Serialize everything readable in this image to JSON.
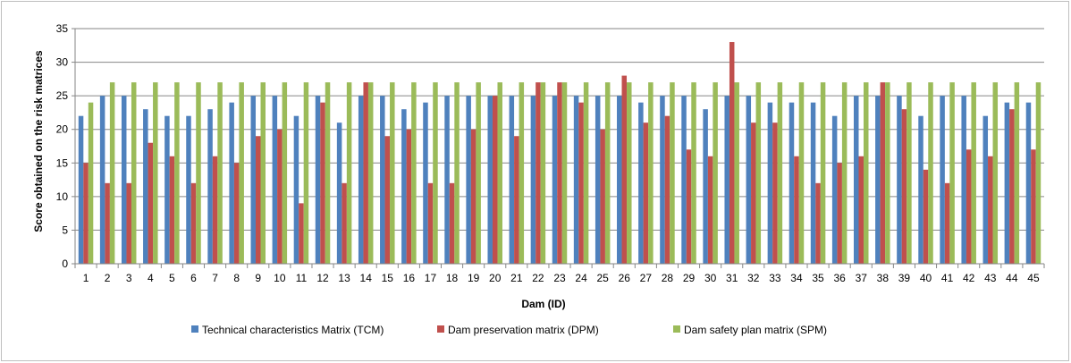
{
  "chart_data": {
    "type": "bar",
    "title": "",
    "xlabel": "Dam (ID)",
    "ylabel": "Score obtained on the risk matrices",
    "ylim": [
      0,
      35
    ],
    "yticks": [
      0,
      5,
      10,
      15,
      20,
      25,
      30,
      35
    ],
    "grid": "horizontal",
    "legend_position": "bottom",
    "categories": [
      "1",
      "2",
      "3",
      "4",
      "5",
      "6",
      "7",
      "8",
      "9",
      "10",
      "11",
      "12",
      "13",
      "14",
      "15",
      "16",
      "17",
      "18",
      "19",
      "20",
      "21",
      "22",
      "23",
      "24",
      "25",
      "26",
      "27",
      "28",
      "29",
      "30",
      "31",
      "32",
      "33",
      "34",
      "35",
      "36",
      "37",
      "38",
      "39",
      "40",
      "41",
      "42",
      "43",
      "44",
      "45"
    ],
    "series": [
      {
        "name": "Technical characteristics Matrix (TCM)",
        "color": "#4f81bd",
        "values": [
          22,
          25,
          25,
          23,
          22,
          22,
          23,
          24,
          25,
          25,
          22,
          25,
          21,
          25,
          25,
          23,
          24,
          25,
          25,
          25,
          25,
          25,
          25,
          25,
          25,
          25,
          24,
          25,
          25,
          23,
          25,
          25,
          24,
          24,
          24,
          22,
          25,
          25,
          25,
          22,
          25,
          25,
          22,
          24,
          24
        ]
      },
      {
        "name": "Dam preservation matrix (DPM)",
        "color": "#c0504d",
        "values": [
          15,
          12,
          12,
          18,
          16,
          12,
          16,
          15,
          19,
          20,
          9,
          24,
          12,
          27,
          19,
          20,
          12,
          12,
          20,
          25,
          19,
          27,
          27,
          24,
          20,
          28,
          21,
          22,
          17,
          16,
          33,
          21,
          21,
          16,
          12,
          15,
          16,
          27,
          23,
          14,
          12,
          17,
          16,
          23,
          17
        ]
      },
      {
        "name": "Dam safety plan matrix (SPM)",
        "color": "#9bbb59",
        "values": [
          24,
          27,
          27,
          27,
          27,
          27,
          27,
          27,
          27,
          27,
          27,
          27,
          27,
          27,
          27,
          27,
          27,
          27,
          27,
          27,
          27,
          27,
          27,
          27,
          27,
          27,
          27,
          27,
          27,
          27,
          27,
          27,
          27,
          27,
          27,
          27,
          27,
          27,
          27,
          27,
          27,
          27,
          27,
          27,
          27
        ]
      }
    ]
  }
}
